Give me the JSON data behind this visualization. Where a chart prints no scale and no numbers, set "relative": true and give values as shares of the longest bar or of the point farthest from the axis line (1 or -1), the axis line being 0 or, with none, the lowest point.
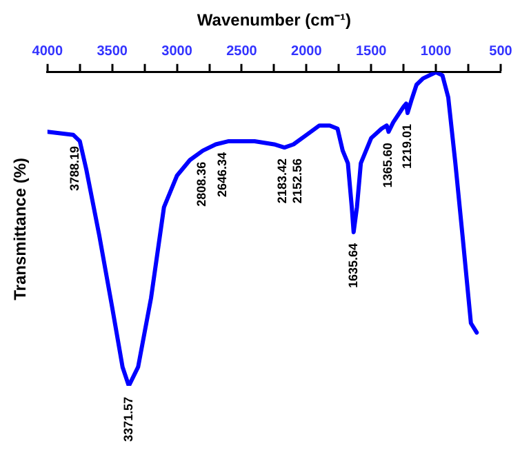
{
  "chart_data": {
    "type": "line",
    "xlabel": "Wavenumber (cm⁻¹)",
    "ylabel": "Transmittance (%)",
    "relative": true,
    "marker": "none",
    "line_style": "solid",
    "grid": false,
    "legend": false,
    "xlim": [
      4000,
      500
    ],
    "xticks": [
      4000,
      {
        "value": 3750,
        "label": null
      },
      3500,
      {
        "value": 3250,
        "label": null
      },
      3000,
      {
        "value": 2750,
        "label": null
      },
      2500,
      {
        "value": 2250,
        "label": null
      },
      2000,
      {
        "value": 1750,
        "label": null
      },
      1500,
      {
        "value": 1250,
        "label": null
      },
      1000,
      {
        "value": 750,
        "label": null
      },
      500
    ],
    "series": [
      {
        "color": "#0000ff",
        "x": [
          4000,
          3800,
          3750,
          3700,
          3600,
          3500,
          3420,
          3371.57,
          3300,
          3200,
          3100,
          3000,
          2900,
          2800,
          2700,
          2600,
          2400,
          2250,
          2170,
          2100,
          2000,
          1900,
          1820,
          1760,
          1720,
          1680,
          1650,
          1635.64,
          1610,
          1580,
          1500,
          1420,
          1380,
          1365.6,
          1330,
          1250,
          1230,
          1219.01,
          1190,
          1150,
          1100,
          1000,
          950,
          905,
          850,
          795,
          730,
          685
        ],
        "values": [
          0.81,
          0.8,
          0.78,
          0.69,
          0.48,
          0.25,
          0.06,
          0,
          0.06,
          0.28,
          0.57,
          0.67,
          0.72,
          0.75,
          0.77,
          0.78,
          0.78,
          0.77,
          0.76,
          0.77,
          0.8,
          0.83,
          0.83,
          0.82,
          0.75,
          0.71,
          0.57,
          0.49,
          0.57,
          0.71,
          0.79,
          0.82,
          0.83,
          0.81,
          0.84,
          0.89,
          0.9,
          0.87,
          0.91,
          0.96,
          0.98,
          1,
          0.99,
          0.92,
          0.71,
          0.48,
          0.2,
          0.17
        ]
      }
    ],
    "annotations": [
      {
        "text": "3788.19",
        "x": 3788.19,
        "y": 0.8
      },
      {
        "text": "3371.57",
        "x": 3371.57,
        "y": 0
      },
      {
        "text": "2808.36",
        "x": 2808.36,
        "y": 0.75
      },
      {
        "text": "2646.34",
        "x": 2646.34,
        "y": 0.78
      },
      {
        "text": "2183.42",
        "x": 2183.42,
        "y": 0.76
      },
      {
        "text": "2152.56",
        "x": 2152.56,
        "y": 0.76
      },
      {
        "text": "1635.64",
        "x": 1635.64,
        "y": 0.49
      },
      {
        "text": "1365.60",
        "x": 1365.6,
        "y": 0.81
      },
      {
        "text": "1219.01",
        "x": 1219.01,
        "y": 0.87
      }
    ]
  }
}
